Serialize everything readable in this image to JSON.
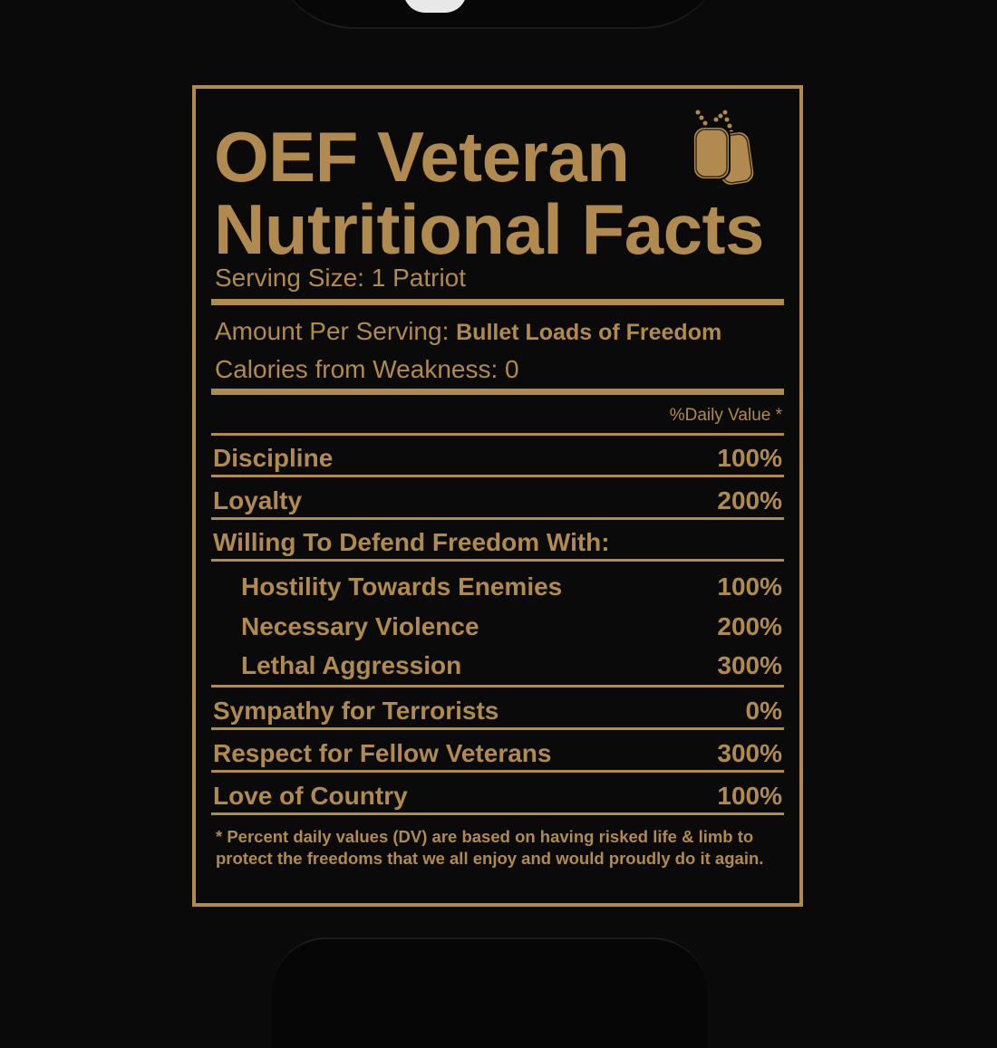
{
  "label": {
    "title_line1": "OEF Veteran",
    "title_line2": "Nutritional Facts",
    "icon": "dog-tags-icon",
    "serving_size": "Serving Size: 1 Patriot",
    "amount_per_serving_label": "Amount Per Serving:",
    "amount_per_serving_value": "Bullet Loads of Freedom",
    "calories": "Calories from Weakness: 0",
    "daily_value_header": "%Daily Value *",
    "rows": [
      {
        "label": "Discipline",
        "value": "100%"
      },
      {
        "label": "Loyalty",
        "value": "200%"
      },
      {
        "label": "Willing To Defend Freedom With:",
        "value": ""
      },
      {
        "label": "Hostility Towards Enemies",
        "value": "100%"
      },
      {
        "label": "Necessary Violence",
        "value": "200%"
      },
      {
        "label": "Lethal Aggression",
        "value": "300%"
      },
      {
        "label": "Sympathy for Terrorists",
        "value": "0%"
      },
      {
        "label": "Respect for Fellow Veterans",
        "value": "300%"
      },
      {
        "label": "Love of Country",
        "value": "100%"
      }
    ],
    "footnote": "* Percent daily values (DV) are based on having risked life & limb to protect the freedoms that we all enjoy and would proudly do it again."
  },
  "colors": {
    "gold": "#b08a4e",
    "background": "#0a0a0a"
  }
}
